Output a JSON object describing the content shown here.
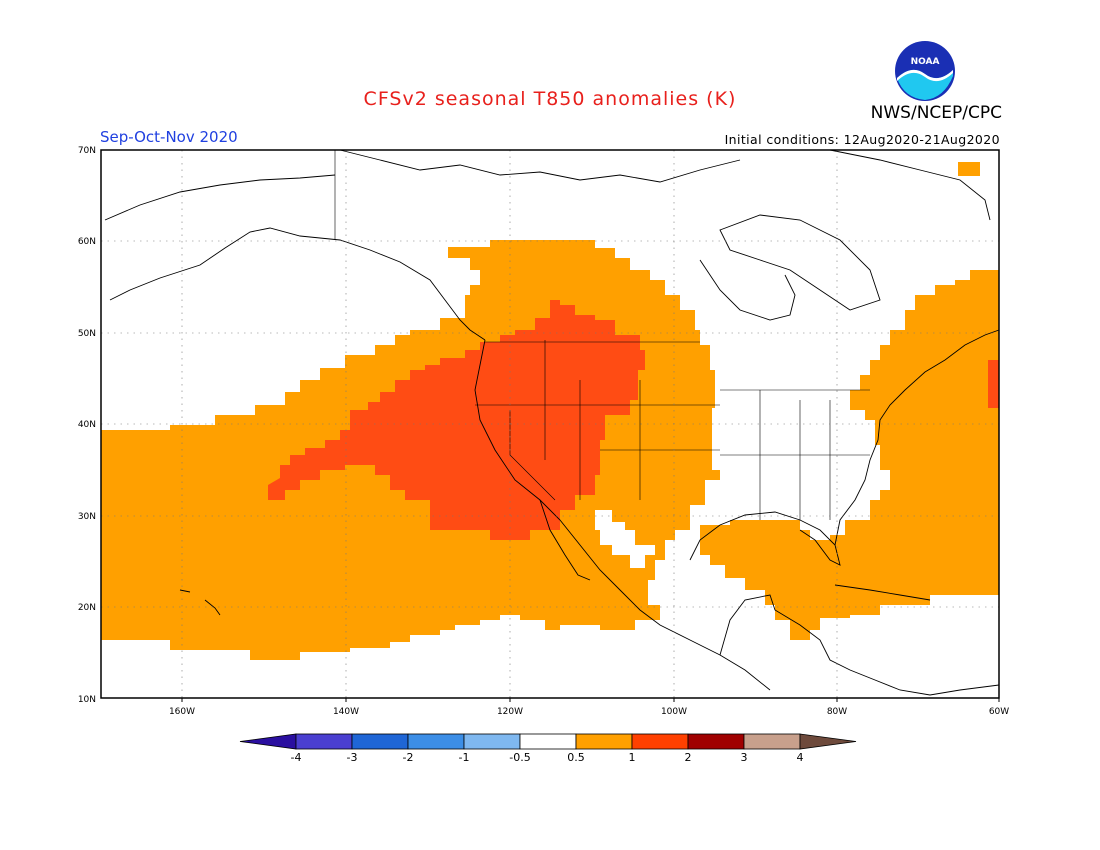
{
  "header": {
    "title": "CFSv2 seasonal T850 anomalies (K)",
    "agency": "NWS/NCEP/CPC",
    "season": "Sep-Oct-Nov 2020",
    "initial_conditions": "Initial conditions: 12Aug2020-21Aug2020",
    "logo_text": "NOAA"
  },
  "axes": {
    "lat_labels": [
      "70N",
      "60N",
      "50N",
      "40N",
      "30N",
      "20N",
      "10N"
    ],
    "lon_labels": [
      "160W",
      "140W",
      "120W",
      "100W",
      "80W",
      "60W"
    ]
  },
  "colorbar": {
    "labels": [
      "-4",
      "-3",
      "-2",
      "-1",
      "-0.5",
      "0.5",
      "1",
      "2",
      "3",
      "4"
    ],
    "colors": [
      "#2a0fa0",
      "#4a3fd0",
      "#1f66d6",
      "#3c8ee6",
      "#7fb8f0",
      "#ffffff",
      "#ffa000",
      "#ff4000",
      "#a00000",
      "#c8a08c",
      "#6e4a3c"
    ]
  },
  "anomaly_colors": {
    "light_warm": "#ffa000",
    "warm": "#ff4c14"
  }
}
